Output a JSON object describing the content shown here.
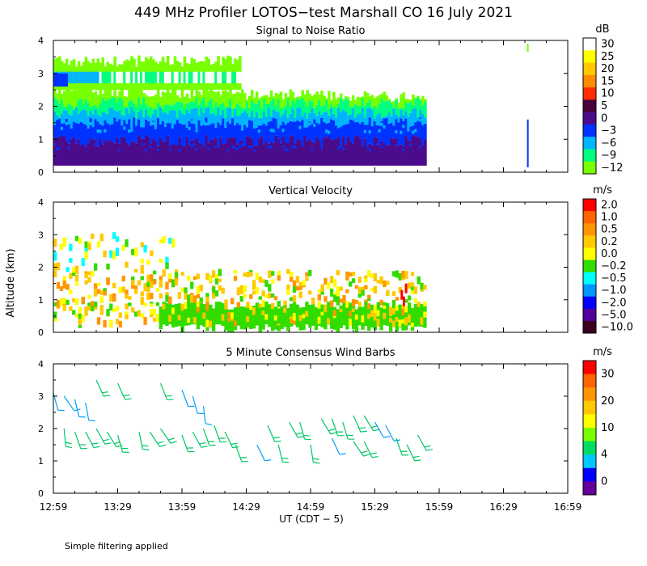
{
  "title": "449 MHz Profiler LOTOS−test Marshall CO 16 July 2021",
  "ylabel": "Altitude (km)",
  "xlabel": "UT  (CDT − 5)",
  "footnote": "Simple filtering applied",
  "time_ticks": [
    "12:59",
    "13:29",
    "13:59",
    "14:29",
    "14:59",
    "15:29",
    "15:59",
    "16:29",
    "16:59"
  ],
  "altitude_ticks": [
    "0",
    "1",
    "2",
    "3",
    "4"
  ],
  "xlim_minutes_after_1259": [
    0,
    240
  ],
  "ylim_km": [
    0,
    4
  ],
  "chart_data": [
    {
      "type": "heatmap",
      "title": "Signal to Noise Ratio",
      "units": "dB",
      "colorbar_labels": [
        "30",
        "25",
        "20",
        "15",
        "10",
        "5",
        "0",
        "−3",
        "−6",
        "−9",
        "−12"
      ],
      "colorbar_colors": [
        "#ffffff",
        "#ffff00",
        "#ffc800",
        "#ff8c00",
        "#ff2d00",
        "#4a003a",
        "#4b0c8c",
        "#0033ff",
        "#00b4ff",
        "#00ff80",
        "#78ff00"
      ],
      "data_end_minutes": 174,
      "layers_km": [
        {
          "name": "purple boundary layer",
          "bottom": 0.2,
          "top": 0.95,
          "color": "#4b0c8c"
        },
        {
          "name": "blue layer",
          "bottom": 0.95,
          "top": 1.5,
          "color": "#0033ff"
        },
        {
          "name": "cyan layer",
          "bottom": 1.5,
          "top": 1.8,
          "color": "#00b4ff"
        },
        {
          "name": "green layer",
          "bottom": 1.8,
          "top": 2.1,
          "color": "#00ff80"
        },
        {
          "name": "lime layer",
          "bottom": 2.1,
          "top": 2.5,
          "color": "#78ff00"
        }
      ]
    },
    {
      "type": "heatmap",
      "title": "Vertical Velocity",
      "units": "m/s",
      "colorbar_labels": [
        "2.0",
        "1.0",
        "0.5",
        "0.2",
        "0.0",
        "−0.2",
        "−0.5",
        "−1.0",
        "−2.0",
        "−5.0",
        "−10.0"
      ],
      "colorbar_colors": [
        "#ff0000",
        "#ff6400",
        "#ff9600",
        "#ffc800",
        "#ffff00",
        "#32dc00",
        "#00ffff",
        "#0096ff",
        "#0000ff",
        "#50009a",
        "#3a0020"
      ],
      "data_end_minutes": 174,
      "typical_values": {
        "low_level_green_zone_km": [
          0.2,
          0.9
        ],
        "scattered_yellow_orange_km": [
          0.4,
          1.9
        ],
        "upper_cyan_patches_km": [
          2.0,
          3.0
        ]
      }
    },
    {
      "type": "scatter",
      "title": "5 Minute Consensus Wind Barbs",
      "units": "m/s",
      "colorbar_labels": [
        "30",
        "20",
        "10",
        "4",
        "0"
      ],
      "colorbar_colors": [
        "#ff0000",
        "#ff6400",
        "#ff9600",
        "#ffc800",
        "#ffff00",
        "#78ff00",
        "#00dc64",
        "#00c8ff",
        "#0000ff",
        "#64009a"
      ],
      "barbs": [
        {
          "t": 0,
          "alt": 3.1,
          "speed": 6
        },
        {
          "t": 5,
          "alt": 3.0,
          "speed": 6
        },
        {
          "t": 10,
          "alt": 2.9,
          "speed": 6
        },
        {
          "t": 15,
          "alt": 2.8,
          "speed": 6
        },
        {
          "t": 5,
          "alt": 2.0,
          "speed": 10
        },
        {
          "t": 10,
          "alt": 1.9,
          "speed": 10
        },
        {
          "t": 15,
          "alt": 1.9,
          "speed": 10
        },
        {
          "t": 20,
          "alt": 2.0,
          "speed": 10
        },
        {
          "t": 25,
          "alt": 1.9,
          "speed": 10
        },
        {
          "t": 30,
          "alt": 1.8,
          "speed": 10
        },
        {
          "t": 40,
          "alt": 1.9,
          "speed": 10
        },
        {
          "t": 45,
          "alt": 1.9,
          "speed": 10
        },
        {
          "t": 50,
          "alt": 2.0,
          "speed": 10
        },
        {
          "t": 60,
          "alt": 1.8,
          "speed": 10
        },
        {
          "t": 65,
          "alt": 1.9,
          "speed": 10
        },
        {
          "t": 70,
          "alt": 2.0,
          "speed": 10
        },
        {
          "t": 75,
          "alt": 2.1,
          "speed": 10
        },
        {
          "t": 80,
          "alt": 1.9,
          "speed": 10
        },
        {
          "t": 85,
          "alt": 1.5,
          "speed": 10
        },
        {
          "t": 20,
          "alt": 3.5,
          "speed": 10
        },
        {
          "t": 30,
          "alt": 3.4,
          "speed": 10
        },
        {
          "t": 50,
          "alt": 3.4,
          "speed": 10
        },
        {
          "t": 60,
          "alt": 3.2,
          "speed": 6
        },
        {
          "t": 65,
          "alt": 3.0,
          "speed": 6
        },
        {
          "t": 70,
          "alt": 2.7,
          "speed": 6
        },
        {
          "t": 95,
          "alt": 1.5,
          "speed": 6
        },
        {
          "t": 100,
          "alt": 2.1,
          "speed": 10
        },
        {
          "t": 105,
          "alt": 1.5,
          "speed": 10
        },
        {
          "t": 110,
          "alt": 2.2,
          "speed": 10
        },
        {
          "t": 115,
          "alt": 2.2,
          "speed": 10
        },
        {
          "t": 120,
          "alt": 1.5,
          "speed": 10
        },
        {
          "t": 125,
          "alt": 2.3,
          "speed": 10
        },
        {
          "t": 130,
          "alt": 2.3,
          "speed": 10
        },
        {
          "t": 135,
          "alt": 2.2,
          "speed": 10
        },
        {
          "t": 140,
          "alt": 2.4,
          "speed": 10
        },
        {
          "t": 145,
          "alt": 2.4,
          "speed": 10
        },
        {
          "t": 150,
          "alt": 2.2,
          "speed": 6
        },
        {
          "t": 155,
          "alt": 2.1,
          "speed": 6
        },
        {
          "t": 160,
          "alt": 1.7,
          "speed": 10
        },
        {
          "t": 165,
          "alt": 1.5,
          "speed": 10
        },
        {
          "t": 170,
          "alt": 1.8,
          "speed": 10
        },
        {
          "t": 140,
          "alt": 1.6,
          "speed": 10
        },
        {
          "t": 145,
          "alt": 1.6,
          "speed": 10
        },
        {
          "t": 130,
          "alt": 1.7,
          "speed": 6
        }
      ]
    }
  ]
}
